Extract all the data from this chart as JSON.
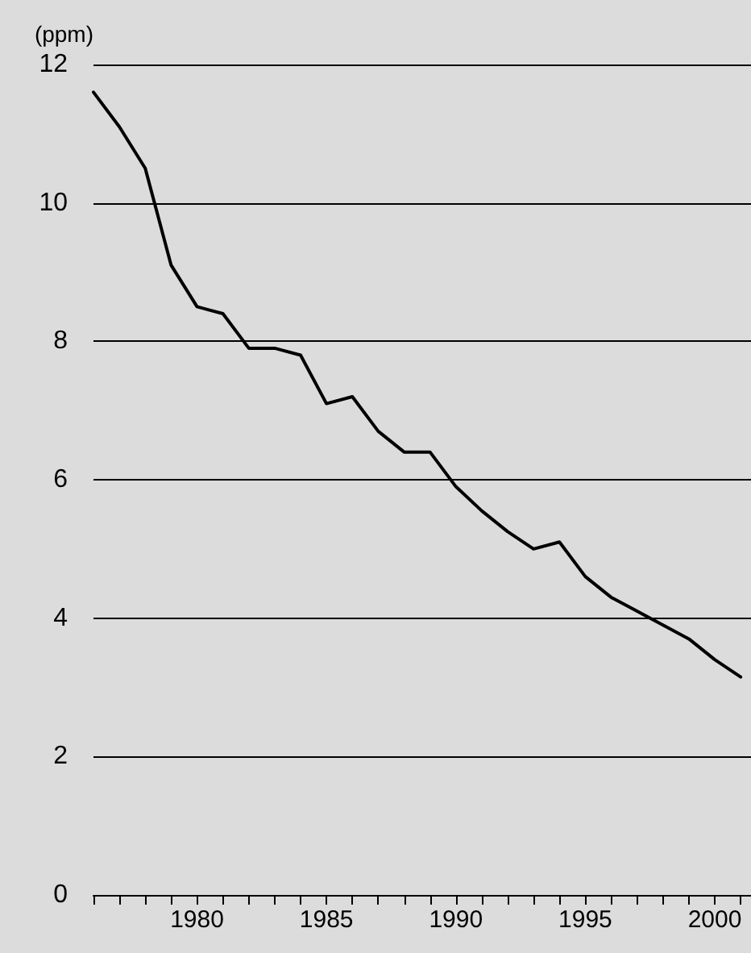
{
  "chart_data": {
    "type": "line",
    "ylabel": "(ppm)",
    "x": [
      1976,
      1977,
      1978,
      1979,
      1980,
      1981,
      1982,
      1983,
      1984,
      1985,
      1986,
      1987,
      1988,
      1989,
      1990,
      1991,
      1992,
      1993,
      1994,
      1995,
      1996,
      1997,
      1998,
      1999,
      2000,
      2001
    ],
    "series": [
      {
        "color": "#000000",
        "values": [
          11.6,
          11.1,
          10.5,
          9.1,
          8.5,
          8.4,
          7.9,
          7.9,
          7.8,
          7.1,
          7.2,
          6.7,
          6.4,
          6.4,
          5.9,
          5.55,
          5.25,
          5.0,
          5.1,
          4.6,
          4.3,
          4.1,
          3.9,
          3.7,
          3.4,
          3.15
        ]
      }
    ],
    "xlim": [
      1976,
      2001.4
    ],
    "xticks": [
      {
        "value": 1976,
        "label": null
      },
      {
        "value": 1977,
        "label": null
      },
      {
        "value": 1978,
        "label": null
      },
      {
        "value": 1979,
        "label": null
      },
      1980,
      {
        "value": 1981,
        "label": null
      },
      {
        "value": 1982,
        "label": null
      },
      {
        "value": 1983,
        "label": null
      },
      {
        "value": 1984,
        "label": null
      },
      1985,
      {
        "value": 1986,
        "label": null
      },
      {
        "value": 1987,
        "label": null
      },
      {
        "value": 1988,
        "label": null
      },
      {
        "value": 1989,
        "label": null
      },
      1990,
      {
        "value": 1991,
        "label": null
      },
      {
        "value": 1992,
        "label": null
      },
      {
        "value": 1993,
        "label": null
      },
      {
        "value": 1994,
        "label": null
      },
      1995,
      {
        "value": 1996,
        "label": null
      },
      {
        "value": 1997,
        "label": null
      },
      {
        "value": 1998,
        "label": null
      },
      {
        "value": 1999,
        "label": null
      },
      2000,
      {
        "value": 2001,
        "label": null
      }
    ],
    "ylim": [
      0,
      12
    ],
    "yticks": [
      0,
      2,
      4,
      6,
      8,
      10,
      12
    ],
    "grid": "y",
    "marker": "none",
    "line_style": "solid"
  }
}
